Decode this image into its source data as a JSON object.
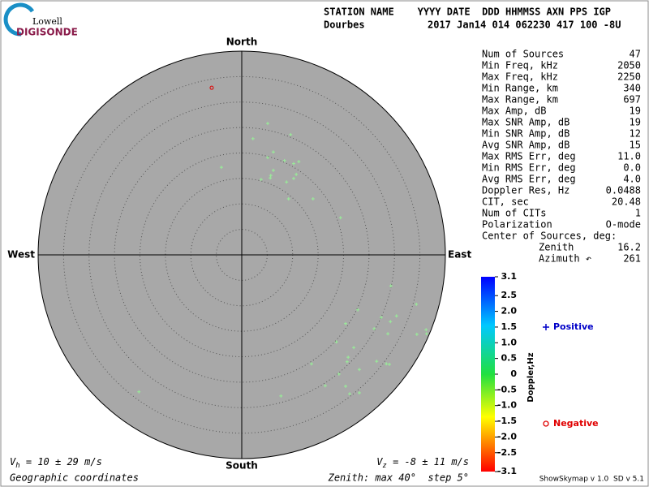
{
  "chart_data": {
    "type": "skymap",
    "logo": {
      "top": "Lowell",
      "bottom": "DIGISONDE"
    },
    "header": {
      "row1": "STATION NAME    YYYY DATE  DDD HHMMSS AXN PPS IGP",
      "row2a": "Dourbes",
      "row2b": "2017 Jan14 014 062230 417 100 -8U"
    },
    "directions": {
      "north": "North",
      "south": "South",
      "east": "East",
      "west": "West"
    },
    "rlim": [
      0,
      40
    ],
    "ring_step": 5,
    "series": [
      {
        "name": "Positive",
        "color": "#98f098",
        "legend_color": "#0000c8",
        "marker": "plus",
        "x": [
          5.1,
          9.6,
          2.2,
          5.1,
          6.2,
          8.4,
          10.2,
          11.2,
          -4.0,
          6.2,
          5.7,
          5.6,
          3.8,
          10.7,
          10.2,
          8.8,
          9.2,
          14.0,
          19.4,
          29.3,
          34.3,
          22.8,
          30.4,
          27.4,
          29.2,
          20.4,
          36.2,
          26.0,
          34.4,
          28.7,
          36.3,
          18.6,
          22.0,
          20.9,
          20.7,
          26.5,
          28.4,
          29.0,
          13.7,
          19.1,
          23.1,
          16.4,
          20.4,
          21.2,
          23.1,
          7.7,
          -20.2
        ],
        "values": [
          25.8,
          23.6,
          22.8,
          19.1,
          20.2,
          18.5,
          17.9,
          18.3,
          17.2,
          16.6,
          15.6,
          15.1,
          14.8,
          15.8,
          15.0,
          14.3,
          11.0,
          11.0,
          7.3,
          -6.1,
          -9.7,
          -10.8,
          -12.0,
          -12.3,
          -13.1,
          -13.5,
          -14.7,
          -14.5,
          -15.6,
          -15.5,
          -15.5,
          -17.1,
          -18.2,
          -20.1,
          -21.0,
          -20.9,
          -21.4,
          -21.5,
          -21.4,
          -23.4,
          -22.5,
          -25.7,
          -25.8,
          -27.3,
          -27.1,
          -27.7,
          -26.9
        ]
      },
      {
        "name": "Negative",
        "color": "#e00000",
        "legend_color": "#e00000",
        "marker": "circle",
        "x": [
          -5.9
        ],
        "values": [
          32.8
        ]
      }
    ],
    "stats": [
      [
        "Num of Sources",
        "47"
      ],
      [
        "Min Freq, kHz",
        "2050"
      ],
      [
        "Max Freq, kHz",
        "2250"
      ],
      [
        "Min Range, km",
        "340"
      ],
      [
        "Max Range, km",
        "697"
      ],
      [
        "Max Amp, dB",
        "19"
      ],
      [
        "Max SNR Amp, dB",
        "19"
      ],
      [
        "Min SNR Amp, dB",
        "12"
      ],
      [
        "Avg SNR Amp, dB",
        "15"
      ],
      [
        "Max RMS Err, deg",
        "11.0"
      ],
      [
        "Min RMS Err, deg",
        "0.0"
      ],
      [
        "Avg RMS Err, deg",
        "4.0"
      ],
      [
        "Doppler Res, Hz",
        "0.0488"
      ],
      [
        "CIT, sec",
        "20.48"
      ],
      [
        "Num of CITs",
        "1"
      ],
      [
        "Polarization",
        "O-mode"
      ]
    ],
    "center_of_sources": {
      "title": "Center of Sources, deg:",
      "rows": [
        [
          "Zenith",
          "16.2"
        ],
        [
          "Azimuth ↶",
          "261"
        ]
      ]
    },
    "colorbar": {
      "label": "Doppler,Hz",
      "lim": [
        -3.1,
        3.1
      ],
      "ticks": [
        3.1,
        2.5,
        {
          "value": 2,
          "label": "2.0"
        },
        1.5,
        {
          "value": 1,
          "label": "1.0"
        },
        0.5,
        0,
        -0.5,
        {
          "value": -1,
          "label": "-1.0"
        },
        -1.5,
        {
          "value": -2,
          "label": "-2.0"
        },
        -2.5,
        -3.1
      ]
    },
    "vh": {
      "symbol": "V",
      "sub": "h",
      "text": " = 10 ± 29 m/s"
    },
    "vz": {
      "symbol": "V",
      "sub": "z",
      "text": " = -8 ± 11 m/s"
    },
    "footer_left": "Geographic coordinates",
    "footer_mid": "Zenith: max 40°  step 5°",
    "footer_right": "ShowSkymap v 1.0  SD v 5.1"
  }
}
